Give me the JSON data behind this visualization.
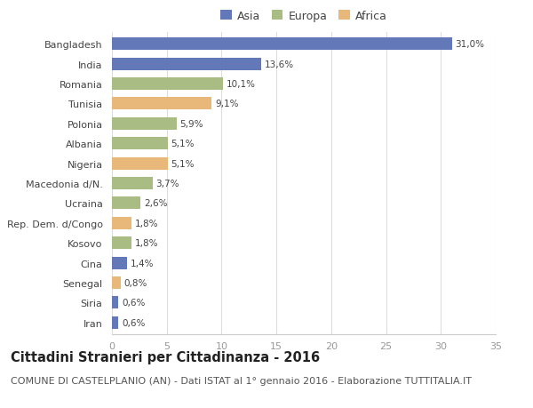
{
  "categories": [
    "Bangladesh",
    "India",
    "Romania",
    "Tunisia",
    "Polonia",
    "Albania",
    "Nigeria",
    "Macedonia d/N.",
    "Ucraina",
    "Rep. Dem. d/Congo",
    "Kosovo",
    "Cina",
    "Senegal",
    "Siria",
    "Iran"
  ],
  "values": [
    31.0,
    13.6,
    10.1,
    9.1,
    5.9,
    5.1,
    5.1,
    3.7,
    2.6,
    1.8,
    1.8,
    1.4,
    0.8,
    0.6,
    0.6
  ],
  "labels": [
    "31,0%",
    "13,6%",
    "10,1%",
    "9,1%",
    "5,9%",
    "5,1%",
    "5,1%",
    "3,7%",
    "2,6%",
    "1,8%",
    "1,8%",
    "1,4%",
    "0,8%",
    "0,6%",
    "0,6%"
  ],
  "continents": [
    "Asia",
    "Asia",
    "Europa",
    "Africa",
    "Europa",
    "Europa",
    "Africa",
    "Europa",
    "Europa",
    "Africa",
    "Europa",
    "Asia",
    "Africa",
    "Asia",
    "Asia"
  ],
  "colors": {
    "Asia": "#6278b8",
    "Europa": "#a8bc84",
    "Africa": "#e8b87a"
  },
  "legend_labels": [
    "Asia",
    "Europa",
    "Africa"
  ],
  "title": "Cittadini Stranieri per Cittadinanza - 2016",
  "subtitle": "COMUNE DI CASTELPLANIO (AN) - Dati ISTAT al 1° gennaio 2016 - Elaborazione TUTTITALIA.IT",
  "xlim": [
    0,
    35
  ],
  "xticks": [
    0,
    5,
    10,
    15,
    20,
    25,
    30,
    35
  ],
  "background_color": "#ffffff",
  "bar_height": 0.62,
  "title_fontsize": 10.5,
  "subtitle_fontsize": 8,
  "tick_fontsize": 8,
  "label_fontsize": 7.5,
  "legend_fontsize": 9
}
